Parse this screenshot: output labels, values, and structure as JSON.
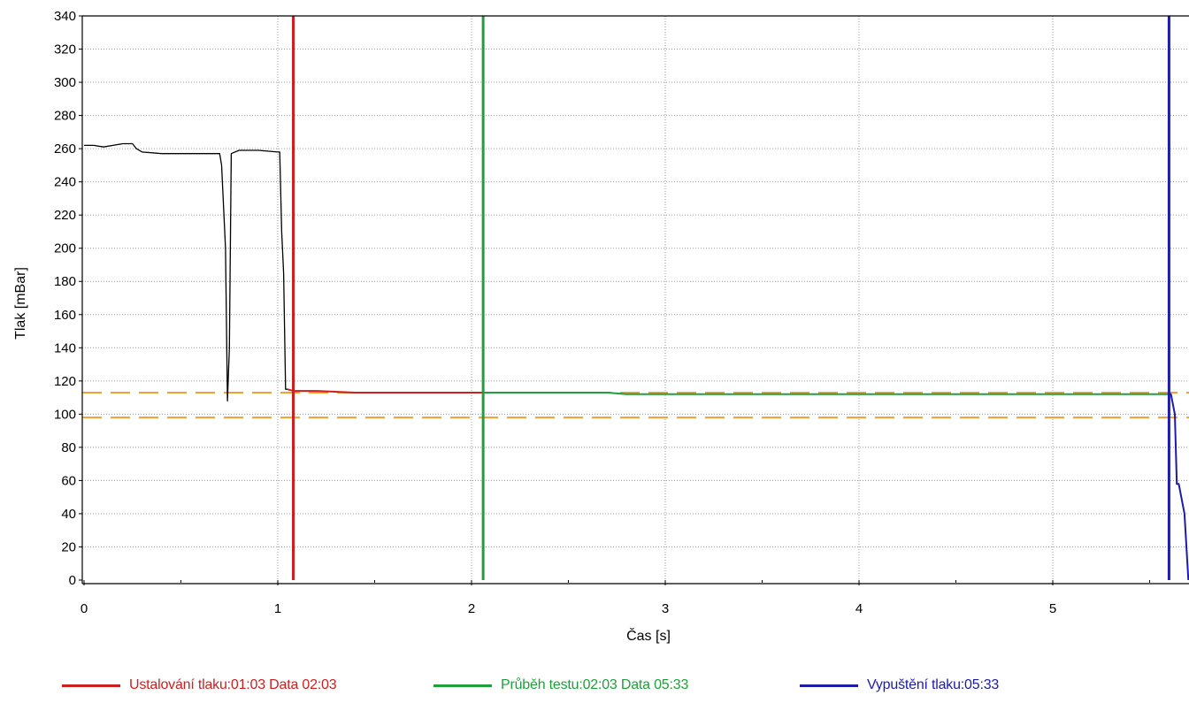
{
  "chart_data": {
    "type": "line",
    "xlabel": "Čas [s]",
    "ylabel": "Tlak [mBar]",
    "xlim": [
      0,
      5.7
    ],
    "ylim": [
      0,
      340
    ],
    "x_ticks": [
      "0",
      "1",
      "2",
      "3",
      "4",
      "5"
    ],
    "y_ticks": [
      "0",
      "20",
      "40",
      "60",
      "80",
      "100",
      "120",
      "140",
      "160",
      "180",
      "200",
      "220",
      "240",
      "260",
      "280",
      "300",
      "320",
      "340"
    ],
    "grid": true,
    "legend_position": "bottom",
    "series": [
      {
        "color": "#000000",
        "x": [
          0,
          0.05,
          0.1,
          0.15,
          0.2,
          0.25,
          0.27,
          0.3,
          0.4,
          0.5,
          0.6,
          0.7,
          0.71,
          0.73,
          0.74,
          0.75,
          0.76,
          0.8,
          0.9,
          1.0,
          1.01,
          1.02,
          1.03,
          1.04,
          1.05
        ],
        "y": [
          262,
          262,
          261,
          262,
          263,
          263,
          260,
          258,
          257,
          257,
          257,
          257,
          250,
          200,
          108,
          140,
          257,
          259,
          259,
          258,
          258,
          210,
          185,
          115,
          115
        ]
      },
      {
        "name": "Ustalování tlaku:01:03 Data 02:03",
        "color": "#cc1f1f",
        "x": [
          1.05,
          1.08,
          1.2,
          1.4,
          1.6,
          1.8,
          2.0,
          2.06
        ],
        "y": [
          115,
          114,
          114,
          113,
          113,
          113,
          113,
          113
        ]
      },
      {
        "name": "Průběh testu:02:03 Data 05:33",
        "color": "#1fa03a",
        "x": [
          2.06,
          2.4,
          2.7,
          2.8,
          3.2,
          4.0,
          5.0,
          5.6
        ],
        "y": [
          113,
          113,
          113,
          112,
          112,
          112,
          112,
          112
        ]
      },
      {
        "name": "Vypuštění tlaku:05:33",
        "color": "#1c1ca8",
        "x": [
          5.6,
          5.61,
          5.63,
          5.64,
          5.65,
          5.68,
          5.7
        ],
        "y": [
          112,
          112,
          100,
          58,
          58,
          40,
          0
        ]
      }
    ],
    "vertical_markers": [
      {
        "x": 1.08,
        "color": "#cc1f1f"
      },
      {
        "x": 2.06,
        "color": "#1fa03a"
      },
      {
        "x": 5.6,
        "color": "#1c1ca8"
      }
    ],
    "threshold_lines": [
      {
        "y": 113,
        "color": "#f0a030",
        "style": "dashed"
      },
      {
        "y": 98,
        "color": "#f0a030",
        "style": "dashed"
      }
    ]
  },
  "legend": {
    "items": [
      {
        "label": "Ustalování tlaku:01:03 Data 02:03",
        "color": "#cc1f1f"
      },
      {
        "label": "Průběh testu:02:03 Data 05:33",
        "color": "#1fa03a"
      },
      {
        "label": "Vypuštění tlaku:05:33",
        "color": "#1c1ca8"
      }
    ]
  }
}
